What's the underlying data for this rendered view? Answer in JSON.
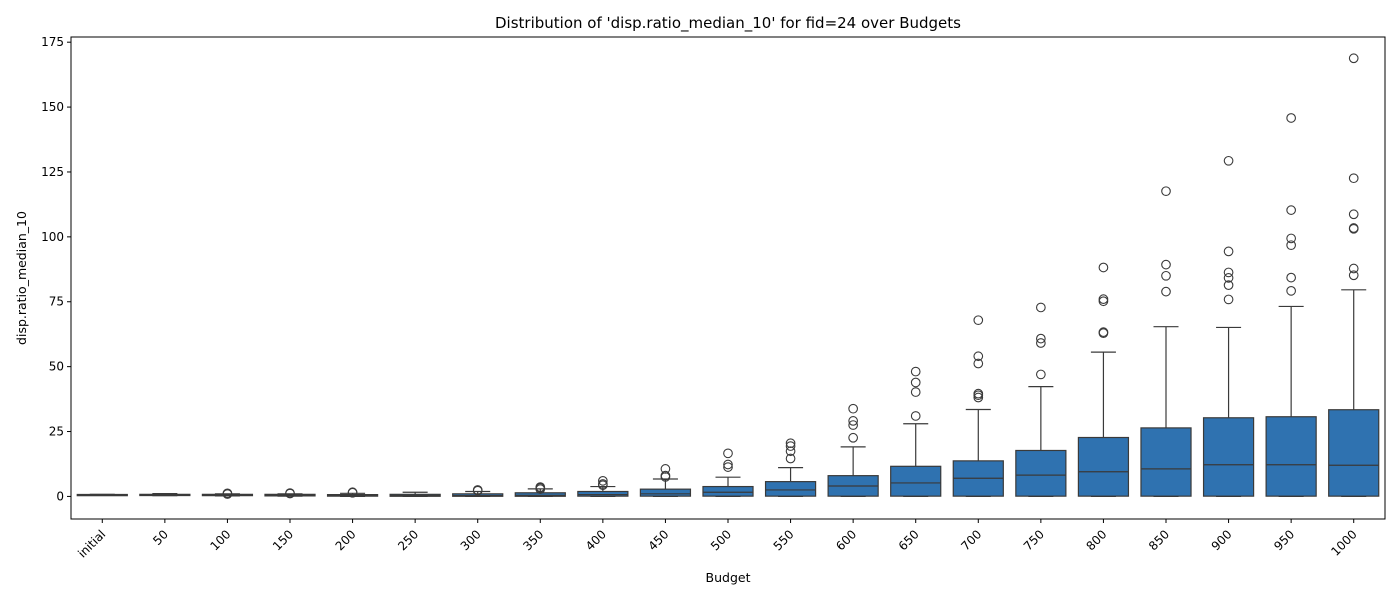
{
  "chart_data": {
    "type": "box",
    "title": "Distribution of 'disp.ratio_median_10' for fid=24 over Budgets",
    "xlabel": "Budget",
    "ylabel": "disp.ratio_median_10",
    "ylim": [
      -8.7,
      177
    ],
    "yticks": [
      0,
      25,
      50,
      75,
      100,
      125,
      150,
      175
    ],
    "grid": false,
    "colors": {
      "box_fill": "#2f72b0",
      "line": "#3a3a3a",
      "outlier": "#3a3a3a"
    },
    "categories": [
      "initial",
      "50",
      "100",
      "150",
      "200",
      "250",
      "300",
      "350",
      "400",
      "450",
      "500",
      "550",
      "600",
      "650",
      "700",
      "750",
      "800",
      "850",
      "900",
      "950",
      "1000"
    ],
    "boxes": [
      {
        "category": "initial",
        "whisker_low": 0.7,
        "q1": 0.7,
        "median": 0.7,
        "q3": 0.75,
        "whisker_high": 0.8,
        "outliers": []
      },
      {
        "category": "50",
        "whisker_low": 0.3,
        "q1": 0.4,
        "median": 0.6,
        "q3": 0.8,
        "whisker_high": 1.1,
        "outliers": []
      },
      {
        "category": "100",
        "whisker_low": 0.2,
        "q1": 0.3,
        "median": 0.5,
        "q3": 0.8,
        "whisker_high": 1.0,
        "outliers": [
          1.2,
          0.9
        ]
      },
      {
        "category": "150",
        "whisker_low": 0.1,
        "q1": 0.2,
        "median": 0.5,
        "q3": 0.8,
        "whisker_high": 1.0,
        "outliers": [
          1.3,
          1.1
        ]
      },
      {
        "category": "200",
        "whisker_low": 0.0,
        "q1": 0.1,
        "median": 0.3,
        "q3": 0.7,
        "whisker_high": 1.2,
        "outliers": [
          1.4,
          1.6
        ]
      },
      {
        "category": "250",
        "whisker_low": 0.0,
        "q1": 0.05,
        "median": 0.3,
        "q3": 0.8,
        "whisker_high": 1.6,
        "outliers": []
      },
      {
        "category": "300",
        "whisker_low": 0.0,
        "q1": 0.05,
        "median": 0.3,
        "q3": 1.0,
        "whisker_high": 1.9,
        "outliers": [
          2.2,
          2.5
        ]
      },
      {
        "category": "350",
        "whisker_low": 0.0,
        "q1": 0.05,
        "median": 0.4,
        "q3": 1.4,
        "whisker_high": 2.9,
        "outliers": [
          3.3,
          3.6,
          2.8
        ]
      },
      {
        "category": "400",
        "whisker_low": 0.0,
        "q1": 0.1,
        "median": 0.7,
        "q3": 1.9,
        "whisker_high": 3.8,
        "outliers": [
          4.3,
          4.8,
          6.0
        ]
      },
      {
        "category": "450",
        "whisker_low": 0.0,
        "q1": 0.1,
        "median": 1.0,
        "q3": 2.8,
        "whisker_high": 6.7,
        "outliers": [
          7.5,
          8.0,
          10.6
        ]
      },
      {
        "category": "500",
        "whisker_low": 0.0,
        "q1": 0.1,
        "median": 1.6,
        "q3": 3.8,
        "whisker_high": 7.4,
        "outliers": [
          11.3,
          12.3,
          16.6
        ]
      },
      {
        "category": "550",
        "whisker_low": 0.0,
        "q1": 0.1,
        "median": 2.5,
        "q3": 5.7,
        "whisker_high": 11.1,
        "outliers": [
          14.6,
          17.4,
          19.4,
          20.5
        ]
      },
      {
        "category": "600",
        "whisker_low": 0.0,
        "q1": 0.1,
        "median": 4.0,
        "q3": 8.0,
        "whisker_high": 19.1,
        "outliers": [
          22.6,
          27.5,
          29.1,
          33.8
        ]
      },
      {
        "category": "650",
        "whisker_low": 0.0,
        "q1": 0.1,
        "median": 5.2,
        "q3": 11.6,
        "whisker_high": 28.0,
        "outliers": [
          31.0,
          40.2,
          43.9,
          48.1
        ]
      },
      {
        "category": "700",
        "whisker_low": 0.0,
        "q1": 0.1,
        "median": 7.0,
        "q3": 13.7,
        "whisker_high": 33.5,
        "outliers": [
          38.1,
          39.0,
          39.6,
          51.2,
          54.0,
          67.9
        ]
      },
      {
        "category": "750",
        "whisker_low": 0.0,
        "q1": 0.1,
        "median": 8.2,
        "q3": 17.7,
        "whisker_high": 42.3,
        "outliers": [
          47.0,
          59.1,
          60.8,
          72.8
        ]
      },
      {
        "category": "800",
        "whisker_low": 0.0,
        "q1": 0.1,
        "median": 9.5,
        "q3": 22.7,
        "whisker_high": 55.6,
        "outliers": [
          62.9,
          63.3,
          75.2,
          76.0,
          88.2
        ]
      },
      {
        "category": "850",
        "whisker_low": 0.0,
        "q1": 0.1,
        "median": 10.6,
        "q3": 26.4,
        "whisker_high": 65.4,
        "outliers": [
          78.9,
          85.0,
          89.3,
          117.6
        ]
      },
      {
        "category": "900",
        "whisker_low": 0.0,
        "q1": 0.1,
        "median": 12.2,
        "q3": 30.3,
        "whisker_high": 65.1,
        "outliers": [
          75.9,
          81.4,
          84.2,
          86.3,
          94.4,
          129.3
        ]
      },
      {
        "category": "950",
        "whisker_low": 0.0,
        "q1": 0.1,
        "median": 12.2,
        "q3": 30.7,
        "whisker_high": 73.2,
        "outliers": [
          79.2,
          84.3,
          96.8,
          99.4,
          110.3,
          145.8
        ]
      },
      {
        "category": "1000",
        "whisker_low": 0.0,
        "q1": 0.1,
        "median": 12.0,
        "q3": 33.4,
        "whisker_high": 79.6,
        "outliers": [
          85.2,
          87.8,
          103.1,
          103.4,
          108.7,
          122.6,
          168.8
        ]
      }
    ]
  }
}
